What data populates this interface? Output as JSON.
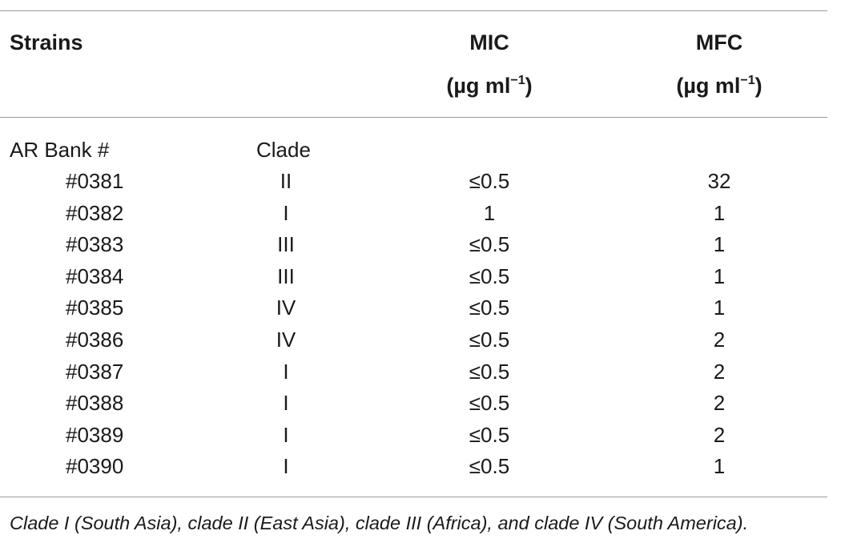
{
  "table": {
    "header": {
      "strains": "Strains",
      "mic": "MIC",
      "mfc": "MFC",
      "unit_prefix": "(µg ml",
      "unit_exp": "−1",
      "unit_suffix": ")"
    },
    "subheader": {
      "bank": "AR Bank #",
      "clade": "Clade"
    },
    "rows": [
      {
        "strain": "#0381",
        "clade": "II",
        "mic": "≤0.5",
        "mfc": "32"
      },
      {
        "strain": "#0382",
        "clade": "I",
        "mic": "1",
        "mfc": "1"
      },
      {
        "strain": "#0383",
        "clade": "III",
        "mic": "≤0.5",
        "mfc": "1"
      },
      {
        "strain": "#0384",
        "clade": "III",
        "mic": "≤0.5",
        "mfc": "1"
      },
      {
        "strain": "#0385",
        "clade": "IV",
        "mic": "≤0.5",
        "mfc": "1"
      },
      {
        "strain": "#0386",
        "clade": "IV",
        "mic": "≤0.5",
        "mfc": "2"
      },
      {
        "strain": "#0387",
        "clade": "I",
        "mic": "≤0.5",
        "mfc": "2"
      },
      {
        "strain": "#0388",
        "clade": "I",
        "mic": "≤0.5",
        "mfc": "2"
      },
      {
        "strain": "#0389",
        "clade": "I",
        "mic": "≤0.5",
        "mfc": "2"
      },
      {
        "strain": "#0390",
        "clade": "I",
        "mic": "≤0.5",
        "mfc": "1"
      }
    ],
    "footnote": "Clade I (South Asia), clade II (East Asia), clade III (Africa), and clade IV (South America)."
  }
}
